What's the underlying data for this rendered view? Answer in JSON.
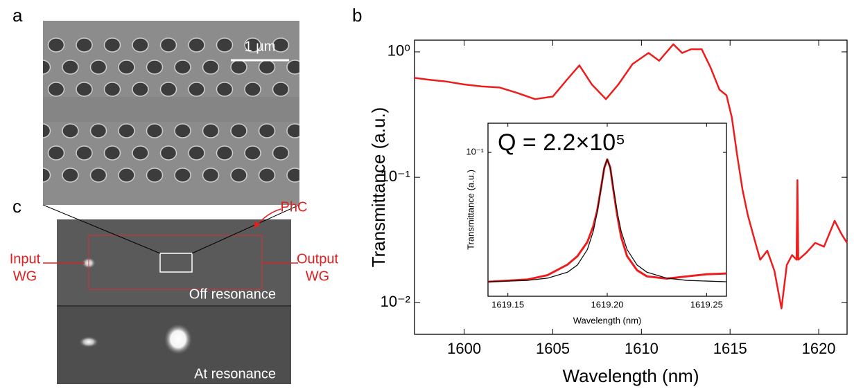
{
  "panels": {
    "a": "a",
    "b": "b",
    "c": "c"
  },
  "sem": {
    "scale_bar": "1 µm"
  },
  "camera": {
    "phc": "PhC",
    "input": [
      "Input",
      "WG"
    ],
    "output": [
      "Output",
      "WG"
    ],
    "off": "Off resonance",
    "at": "At resonance"
  },
  "chart_data": [
    {
      "type": "line",
      "xlabel": "Wavelength (nm)",
      "ylabel": "Transmittance (a.u.)",
      "log_y": true,
      "xlim": [
        1597.2,
        1621.6
      ],
      "xticks": [
        1600,
        1605,
        1610,
        1615,
        1620
      ],
      "ylim": [
        0.0056,
        1.24
      ],
      "yticks": [
        {
          "value": 0.01,
          "label": "10⁻²"
        },
        {
          "value": 0.1,
          "label": "10⁻¹"
        },
        {
          "value": 1,
          "label": "10⁰"
        }
      ],
      "series": [
        {
          "color": "#ee1c1c",
          "x": [
            1597.2,
            1598,
            1599,
            1600,
            1601,
            1602,
            1603,
            1604,
            1605,
            1605.8,
            1606.5,
            1607.2,
            1608,
            1608.7,
            1609.5,
            1610.4,
            1611,
            1611.8,
            1612.3,
            1612.8,
            1613.4,
            1613.9,
            1614.4,
            1614.8,
            1615.1,
            1615.4,
            1615.7,
            1616,
            1616.3,
            1616.7,
            1617.1,
            1617.5,
            1617.9,
            1618.2,
            1618.5,
            1618.75,
            1618.8,
            1618.85,
            1619.3,
            1619.8,
            1620.3,
            1620.9,
            1621.3,
            1621.6
          ],
          "values": [
            0.62,
            0.6,
            0.58,
            0.55,
            0.53,
            0.52,
            0.47,
            0.42,
            0.44,
            0.6,
            0.78,
            0.55,
            0.42,
            0.55,
            0.8,
            0.98,
            0.85,
            1.15,
            0.98,
            1.05,
            1.05,
            0.75,
            0.5,
            0.45,
            0.3,
            0.15,
            0.08,
            0.05,
            0.035,
            0.022,
            0.026,
            0.018,
            0.009,
            0.02,
            0.024,
            0.022,
            0.095,
            0.022,
            0.025,
            0.03,
            0.028,
            0.045,
            0.035,
            0.03
          ]
        }
      ]
    },
    {
      "type": "line",
      "xlabel": "Wavelength (nm)",
      "ylabel": "Transmittance (a.u.)",
      "log_y": true,
      "annotation": "Q = 2.2×10⁵",
      "xlim": [
        1619.14,
        1619.26
      ],
      "xticks": [
        1619.15,
        {
          "value": 1619.2,
          "label": "1619.20"
        },
        1619.25
      ],
      "ylim": [
        0.0115,
        0.155
      ],
      "yticks": [
        {
          "value": 0.1,
          "label": "10⁻¹"
        }
      ],
      "series": [
        {
          "color": "#ee1c1c",
          "x": [
            1619.14,
            1619.16,
            1619.17,
            1619.18,
            1619.185,
            1619.19,
            1619.193,
            1619.195,
            1619.197,
            1619.1985,
            1619.2,
            1619.2015,
            1619.203,
            1619.205,
            1619.207,
            1619.21,
            1619.215,
            1619.22,
            1619.23,
            1619.24,
            1619.25,
            1619.26
          ],
          "values": [
            0.0143,
            0.0148,
            0.0158,
            0.0185,
            0.021,
            0.026,
            0.033,
            0.042,
            0.06,
            0.079,
            0.09,
            0.08,
            0.058,
            0.039,
            0.028,
            0.021,
            0.017,
            0.0155,
            0.015,
            0.0155,
            0.016,
            0.0162
          ]
        },
        {
          "color": "#111111",
          "x": [
            1619.14,
            1619.16,
            1619.17,
            1619.18,
            1619.185,
            1619.19,
            1619.193,
            1619.195,
            1619.197,
            1619.1985,
            1619.2,
            1619.2015,
            1619.203,
            1619.205,
            1619.207,
            1619.21,
            1619.215,
            1619.22,
            1619.23,
            1619.24,
            1619.26
          ],
          "values": [
            0.0143,
            0.0146,
            0.0151,
            0.0165,
            0.0184,
            0.0232,
            0.0306,
            0.0409,
            0.0598,
            0.0793,
            0.09,
            0.0793,
            0.0598,
            0.0409,
            0.0306,
            0.0232,
            0.0184,
            0.0165,
            0.0151,
            0.0146,
            0.0143
          ]
        }
      ]
    }
  ]
}
